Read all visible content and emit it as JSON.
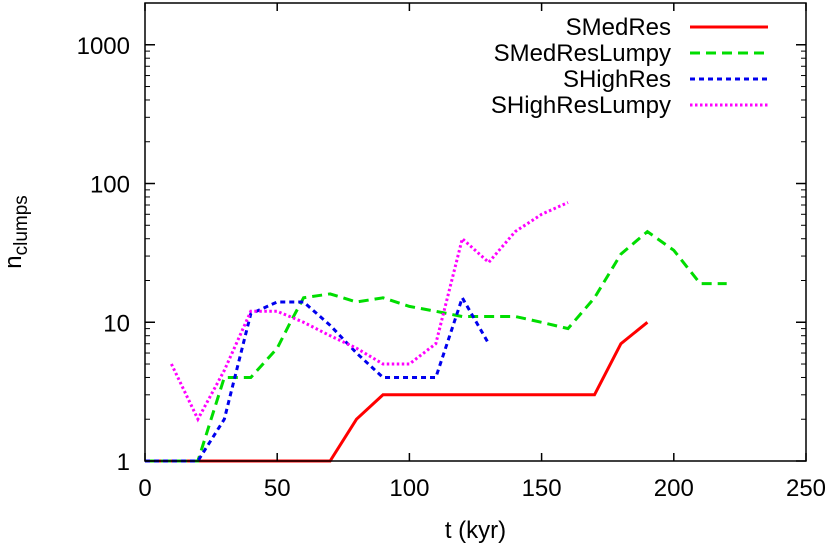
{
  "chart_data": {
    "type": "line",
    "title": "",
    "xlabel": "t (kyr)",
    "ylabel_main": "n",
    "ylabel_sub": "clumps",
    "xlim": [
      0,
      250
    ],
    "ylim": [
      1,
      2000
    ],
    "yscale": "log",
    "grid": false,
    "legend_position": "top-right",
    "xticks": [
      0,
      50,
      100,
      150,
      200,
      250
    ],
    "yticks": [
      1,
      10,
      100,
      1000
    ],
    "series": [
      {
        "name": "SMedRes",
        "color": "#ff0000",
        "dash": "solid",
        "x": [
          0,
          70,
          80,
          90,
          100,
          110,
          120,
          130,
          140,
          150,
          160,
          170,
          180,
          190
        ],
        "y": [
          1,
          1,
          2,
          3,
          3,
          3,
          3,
          3,
          3,
          3,
          3,
          3,
          7,
          10
        ]
      },
      {
        "name": "SMedResLumpy",
        "color": "#00dd00",
        "dash": "dashed",
        "x": [
          0,
          20,
          25,
          30,
          35,
          40,
          50,
          55,
          60,
          65,
          70,
          80,
          90,
          100,
          110,
          120,
          130,
          140,
          150,
          160,
          170,
          180,
          190,
          200,
          210,
          220
        ],
        "y": [
          1,
          1,
          2,
          4,
          4,
          4,
          6.5,
          10,
          15,
          15.5,
          16,
          14,
          15,
          13,
          12,
          11,
          11,
          11,
          10,
          9,
          15,
          31,
          45,
          33,
          19,
          19
        ]
      },
      {
        "name": "SHighRes",
        "color": "#0000ee",
        "dash": "short-dashed",
        "x": [
          0,
          20,
          30,
          40,
          50,
          60,
          70,
          80,
          90,
          100,
          110,
          120,
          130
        ],
        "y": [
          1,
          1,
          2,
          11.5,
          14,
          14,
          9.5,
          6,
          4,
          4,
          4,
          15,
          7
        ]
      },
      {
        "name": "SHighResLumpy",
        "color": "#ff00ff",
        "dash": "dotted",
        "x": [
          10,
          20,
          30,
          40,
          50,
          60,
          70,
          80,
          90,
          100,
          110,
          120,
          130,
          140,
          150,
          160
        ],
        "y": [
          5,
          2,
          4.5,
          12,
          12,
          10,
          8,
          6.5,
          5,
          5,
          7,
          40,
          27,
          45,
          60,
          73
        ]
      }
    ]
  }
}
